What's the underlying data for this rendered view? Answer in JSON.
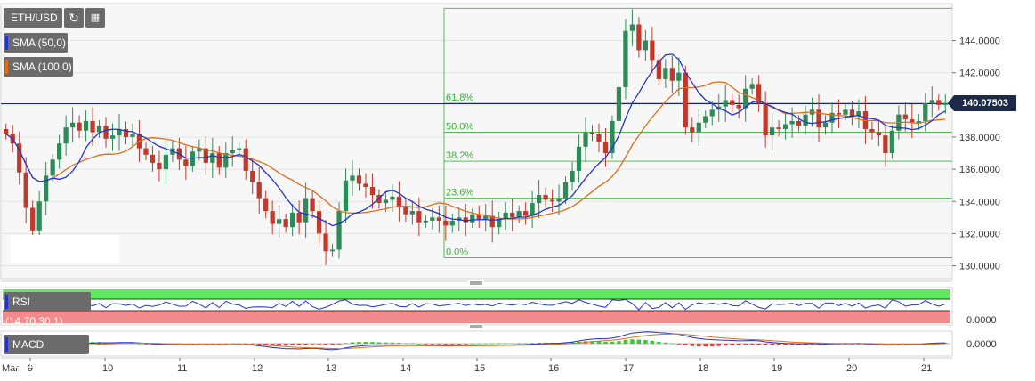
{
  "header": {
    "symbol": "ETH/USD",
    "refresh_icon": "refresh-icon",
    "calendar_icon": "calendar-icon"
  },
  "indicators": {
    "sma50": {
      "label": "SMA (50,0)",
      "color": "#2433c9"
    },
    "sma100": {
      "label": "SMA (100,0)",
      "color": "#e06d1a"
    },
    "rsi": {
      "label": "RSI (14,70,30,1)"
    },
    "macd": {
      "label": "MACD (12,26,9)"
    }
  },
  "last_price": "140.07503",
  "colors": {
    "up": "#2e8b57",
    "down": "#c0392b",
    "fib": "#4fc24f",
    "rsi_over": "#5ee85e",
    "rsi_under": "#f28c8c"
  },
  "chart_data": {
    "type": "candlestick",
    "ylim": [
      129.2,
      146.3
    ],
    "y_ticks": [
      "130.0000",
      "132.0000",
      "134.0000",
      "136.0000",
      "138.0000",
      "140.0000",
      "142.0000",
      "144.0000"
    ],
    "x_labels": [
      "Mar",
      "9",
      "10",
      "11",
      "12",
      "13",
      "14",
      "15",
      "16",
      "17",
      "18",
      "19",
      "20",
      "21"
    ],
    "fib_levels": [
      {
        "label": "61.8%",
        "value": 140.1
      },
      {
        "label": "50.0%",
        "value": 138.3
      },
      {
        "label": "38.2%",
        "value": 136.5
      },
      {
        "label": "23.6%",
        "value": 134.2
      },
      {
        "label": "0.0%",
        "value": 130.5
      }
    ],
    "fib_top_value": 146.0,
    "last_price_value": 140.075,
    "closes": [
      138.2,
      137.6,
      135.8,
      133.6,
      132.2,
      134.0,
      135.6,
      136.6,
      137.6,
      138.6,
      138.9,
      138.4,
      139.0,
      138.3,
      138.7,
      137.9,
      138.1,
      138.5,
      138.0,
      138.2,
      137.3,
      136.9,
      136.4,
      136.0,
      136.9,
      137.3,
      136.6,
      136.2,
      137.1,
      137.3,
      136.4,
      137.0,
      136.1,
      137.0,
      137.2,
      137.3,
      135.9,
      135.2,
      134.2,
      133.4,
      132.6,
      132.9,
      132.4,
      133.3,
      132.7,
      134.2,
      133.4,
      132.0,
      130.9,
      131.0,
      133.4,
      135.3,
      135.6,
      135.1,
      134.9,
      134.4,
      133.9,
      134.1,
      134.3,
      133.7,
      133.2,
      133.4,
      132.7,
      132.8,
      133.0,
      132.8,
      132.5,
      132.8,
      133.0,
      132.7,
      133.2,
      132.9,
      133.1,
      132.4,
      132.9,
      133.3,
      133.0,
      133.4,
      133.1,
      133.9,
      134.4,
      134.1,
      134.0,
      134.2,
      135.2,
      135.9,
      137.4,
      138.3,
      138.2,
      137.7,
      137.0,
      139.0,
      141.1,
      144.6,
      145.0,
      143.4,
      144.0,
      142.8,
      141.6,
      142.3,
      141.5,
      142.0,
      138.6,
      138.3,
      138.9,
      139.3,
      139.7,
      139.9,
      140.3,
      140.0,
      139.8,
      141.0,
      141.3,
      140.1,
      138.1,
      138.6,
      138.5,
      138.8,
      139.0,
      138.7,
      139.4,
      139.7,
      138.6,
      138.9,
      139.5,
      139.4,
      139.7,
      139.3,
      139.6,
      138.5,
      138.3,
      138.1,
      137.0,
      138.4,
      139.4,
      139.1,
      138.9,
      139.0,
      140.1,
      140.3,
      140.0,
      140.1
    ]
  }
}
